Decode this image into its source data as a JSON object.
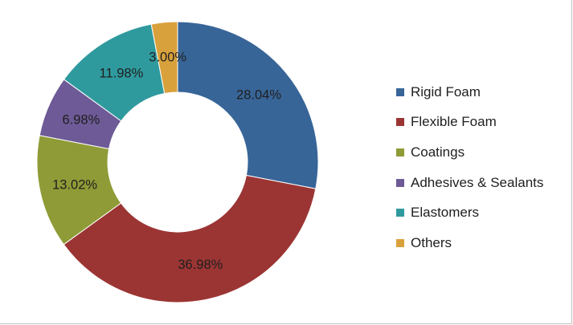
{
  "chart_data": {
    "type": "pie",
    "variant": "donut",
    "title": "",
    "start_angle_deg": 0,
    "direction": "clockwise",
    "legend_position": "right",
    "slices": [
      {
        "name": "Rigid Foam",
        "value": 28.04,
        "label": "28.04%",
        "color": "#386598"
      },
      {
        "name": "Flexible Foam",
        "value": 36.98,
        "label": "36.98%",
        "color": "#9b3533"
      },
      {
        "name": "Coatings",
        "value": 13.02,
        "label": "13.02%",
        "color": "#8f9b36"
      },
      {
        "name": "Adhesives & Sealants",
        "value": 6.98,
        "label": "6.98%",
        "color": "#6d5a96"
      },
      {
        "name": "Elastomers",
        "value": 11.98,
        "label": "11.98%",
        "color": "#2f9a9e"
      },
      {
        "name": "Others",
        "value": 3.0,
        "label": "3.00%",
        "color": "#d9a13c"
      }
    ]
  }
}
